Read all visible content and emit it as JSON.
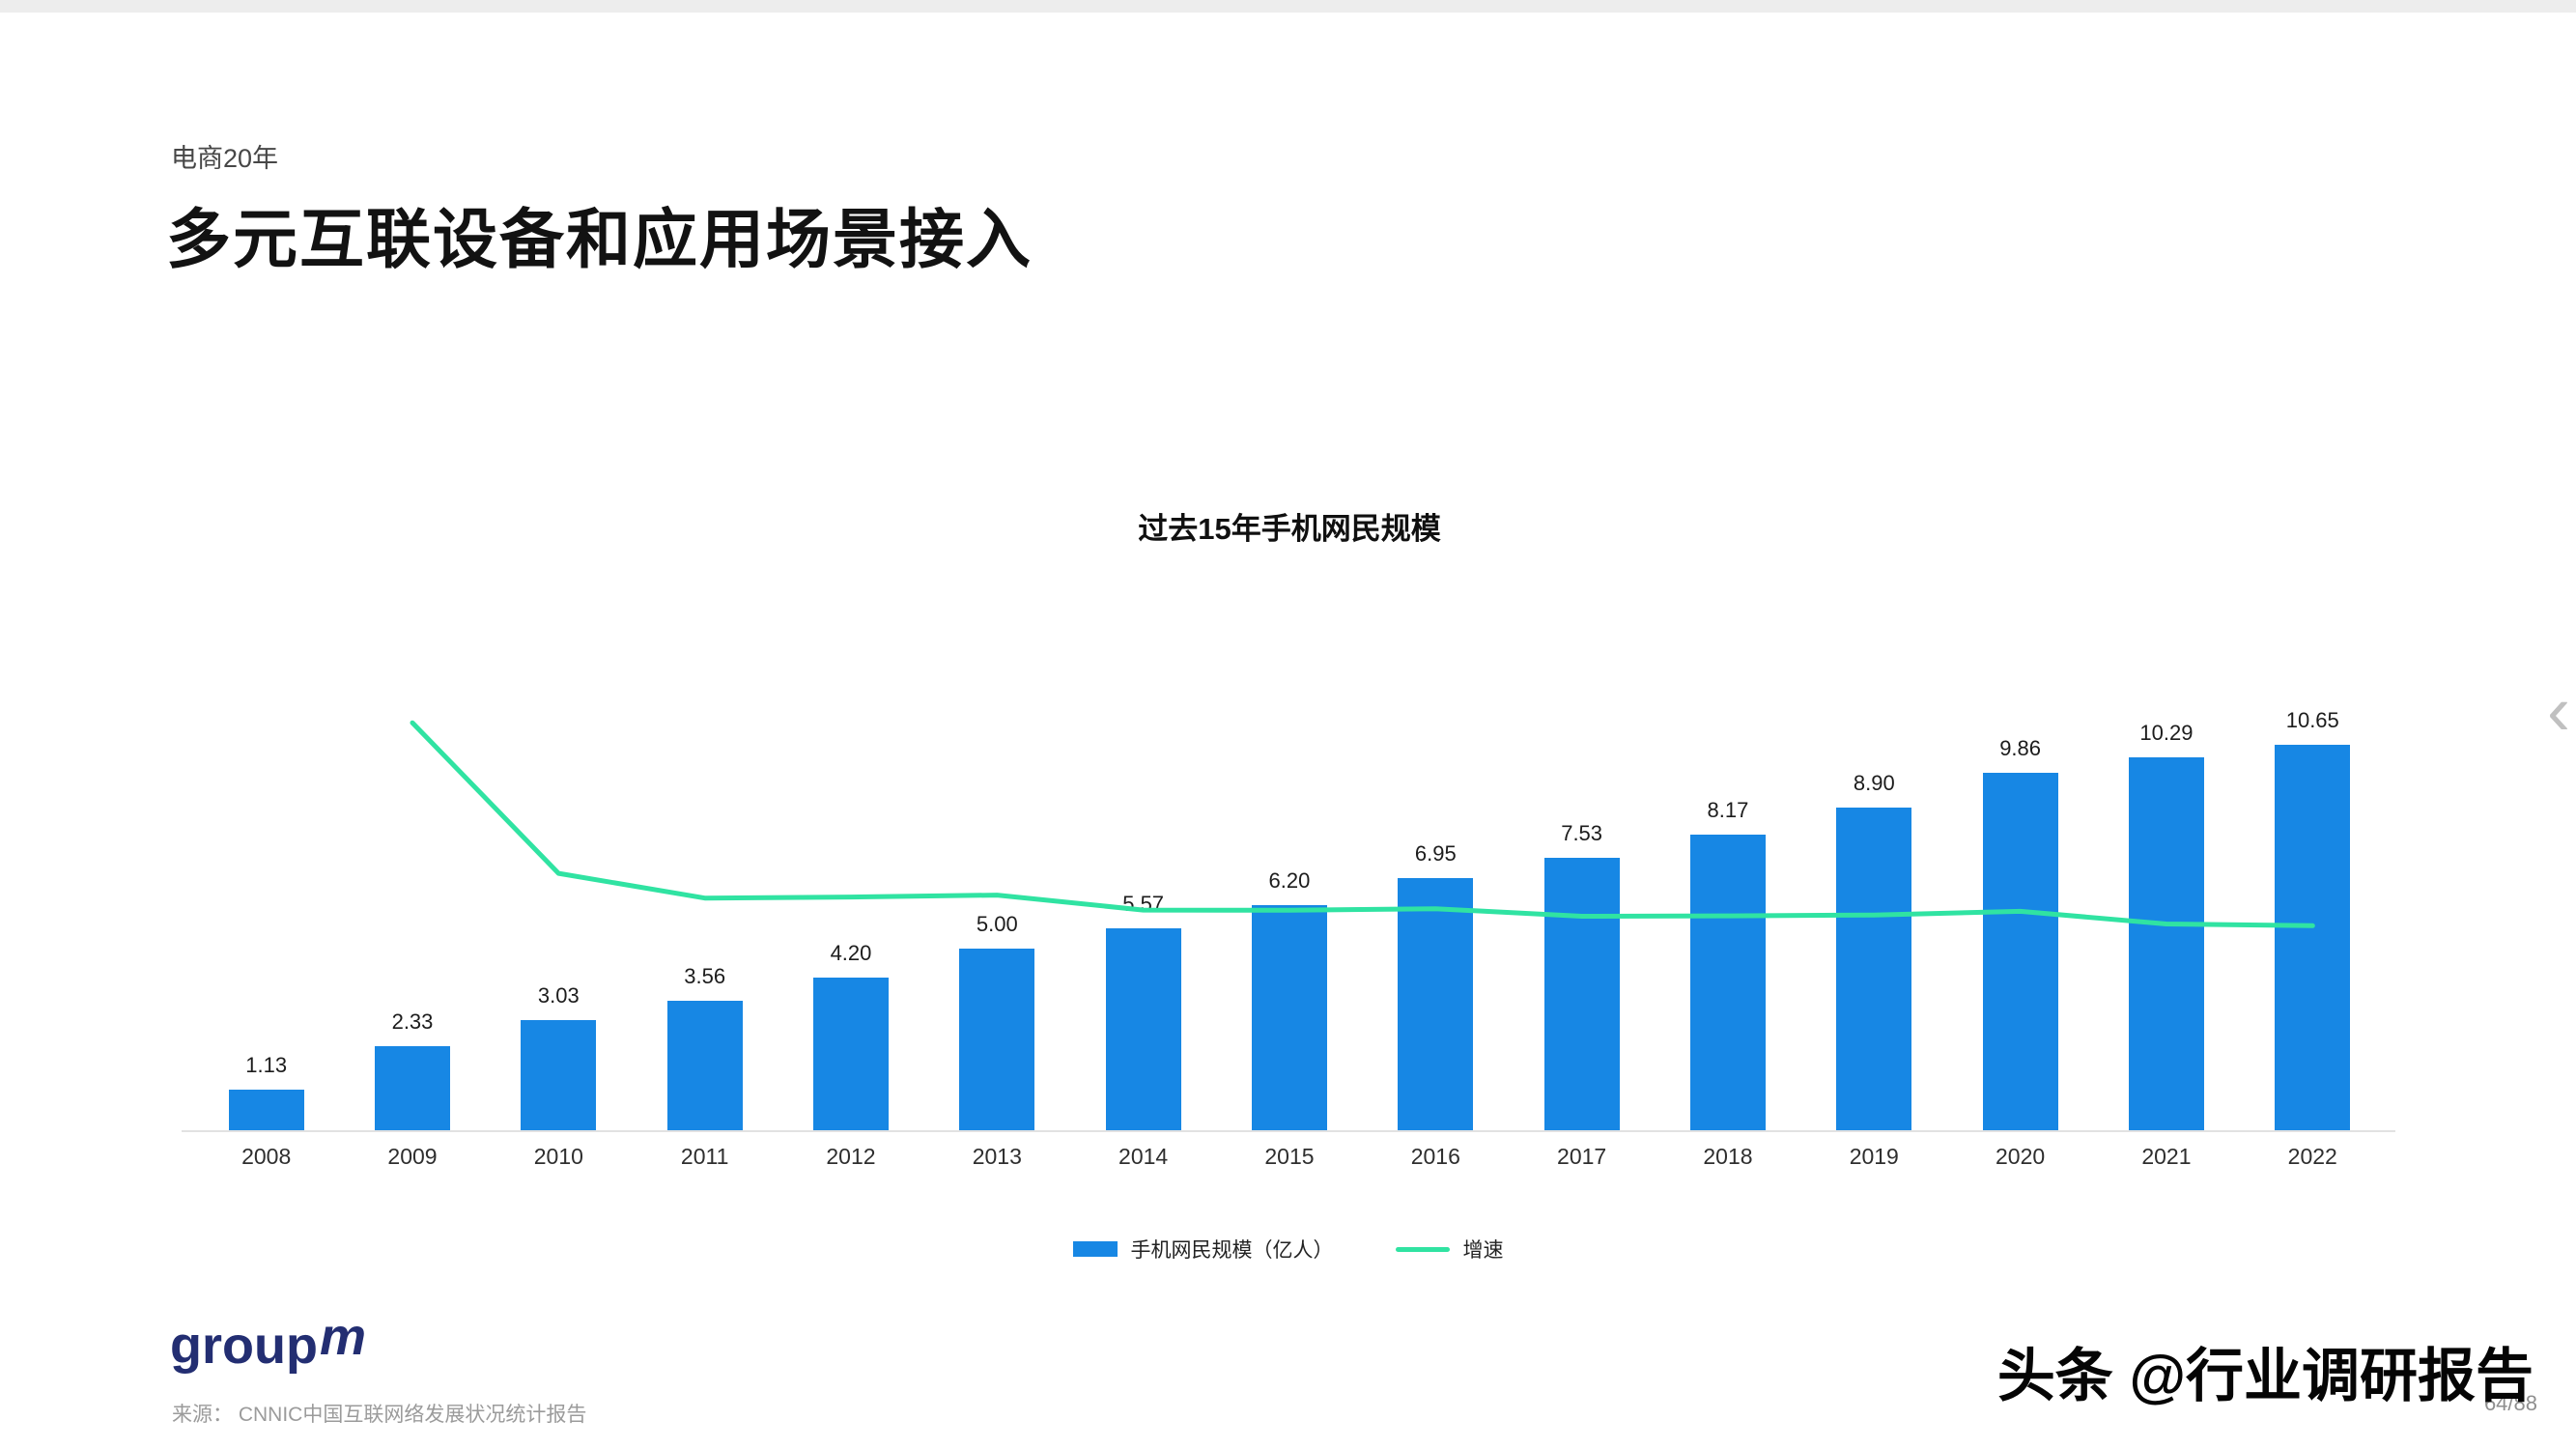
{
  "page": {
    "eyebrow": "电商20年",
    "title": "多元互联设备和应用场景接入",
    "logo_text": "group",
    "logo_suffix": "m",
    "source": "来源：  CNNIC中国互联网络发展状况统计报告",
    "watermark": "头条 @行业调研报告",
    "page_number": "64/88",
    "prev_icon_glyph": "‹"
  },
  "chart_data": {
    "type": "bar",
    "title": "过去15年手机网民规模",
    "categories": [
      "2008",
      "2009",
      "2010",
      "2011",
      "2012",
      "2013",
      "2014",
      "2015",
      "2016",
      "2017",
      "2018",
      "2019",
      "2020",
      "2021",
      "2022"
    ],
    "series": [
      {
        "name": "手机网民规模（亿人）",
        "kind": "bar",
        "color": "#1787E4",
        "values": [
          1.13,
          2.33,
          3.03,
          3.56,
          4.2,
          5.0,
          5.57,
          6.2,
          6.95,
          7.53,
          8.17,
          8.9,
          9.86,
          10.29,
          10.65
        ]
      },
      {
        "name": "增速",
        "kind": "line",
        "color": "#30E3A2",
        "axis": "secondary",
        "estimated": true,
        "values": [
          null,
          106.2,
          30.0,
          17.5,
          18.0,
          19.0,
          11.4,
          11.3,
          12.1,
          8.3,
          8.5,
          8.9,
          10.8,
          4.4,
          3.5
        ]
      }
    ],
    "ylim": [
      0,
      12
    ],
    "ylim2": [
      -100,
      120
    ],
    "legend_position": "bottom",
    "grid": false,
    "value_labels": true
  }
}
